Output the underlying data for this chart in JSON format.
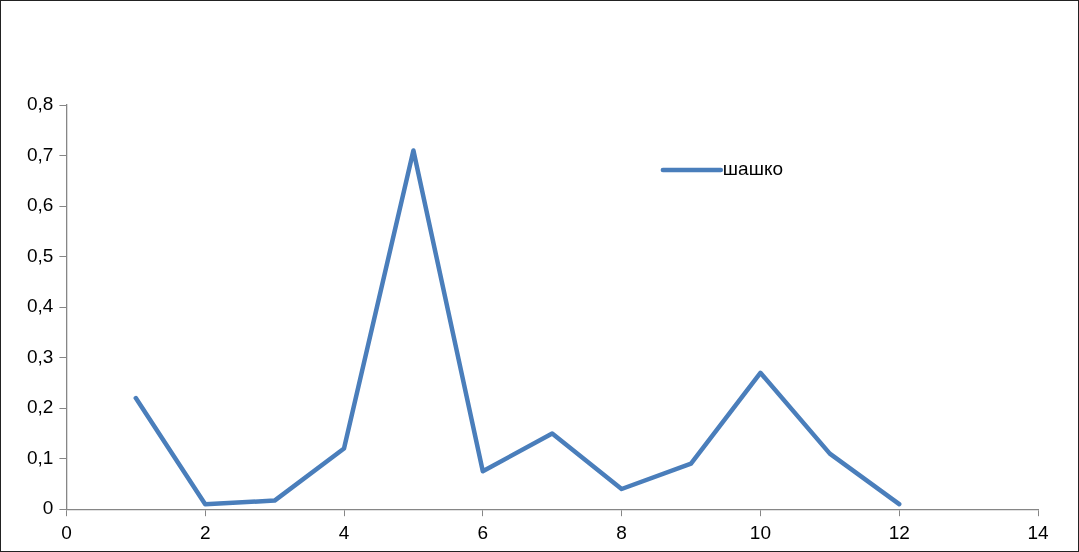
{
  "chart_data": {
    "type": "line",
    "x": [
      1,
      2,
      3,
      4,
      5,
      6,
      7,
      8,
      9,
      10,
      11,
      12
    ],
    "series": [
      {
        "name": "шашко",
        "color": "#4a7ebb",
        "values": [
          0.22,
          0.01,
          0.017,
          0.12,
          0.71,
          0.075,
          0.15,
          0.04,
          0.09,
          0.27,
          0.11,
          0.01
        ]
      }
    ],
    "xlim": [
      0,
      14
    ],
    "xticks": [
      0,
      2,
      4,
      6,
      8,
      10,
      12,
      14
    ],
    "ylim": [
      0,
      0.8
    ],
    "yticks": [
      0,
      {
        "value": 0.1,
        "label": "0,1"
      },
      {
        "value": 0.2,
        "label": "0,2"
      },
      {
        "value": 0.3,
        "label": "0,3"
      },
      {
        "value": 0.4,
        "label": "0,4"
      },
      {
        "value": 0.5,
        "label": "0,5"
      },
      {
        "value": 0.6,
        "label": "0,6"
      },
      {
        "value": 0.7,
        "label": "0,7"
      },
      {
        "value": 0.8,
        "label": "0,8"
      }
    ],
    "grid": false,
    "legend": "top right",
    "marker": "none",
    "line_style": "solid"
  }
}
